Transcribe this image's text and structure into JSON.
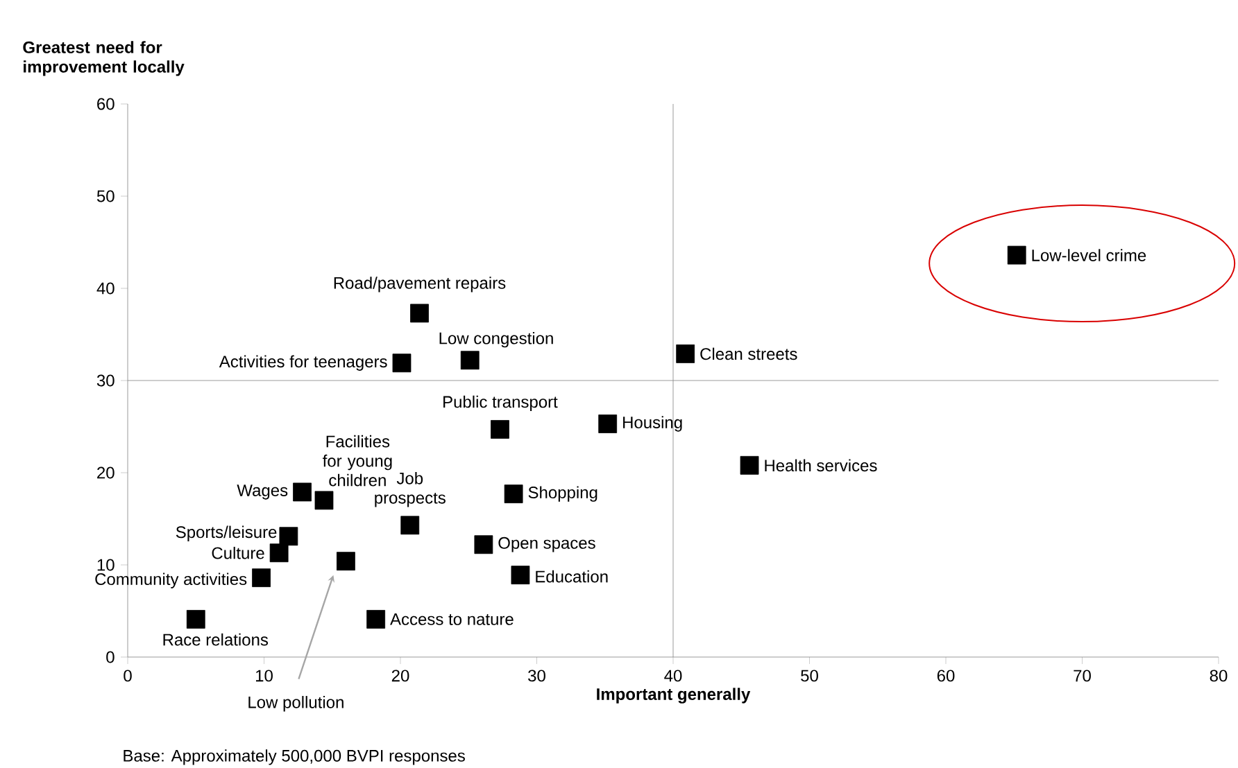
{
  "chart_data": {
    "type": "scatter",
    "xlabel": "Important generally",
    "ylabel": "Greatest need for improvement locally",
    "xlim": [
      0,
      80
    ],
    "ylim": [
      0,
      60
    ],
    "xticks": [
      0,
      10,
      20,
      30,
      40,
      50,
      60,
      70,
      80
    ],
    "yticks": [
      0,
      10,
      20,
      30,
      40,
      50,
      60
    ],
    "marker": "square",
    "ref_lines": [
      {
        "axis": "x",
        "value": 40,
        "color": "#808080"
      },
      {
        "axis": "y",
        "value": 30,
        "color": "#808080"
      }
    ],
    "annotations": [
      "Base: Approximately 500,000 BVPI responses"
    ],
    "series": [
      {
        "name": "Low-level crime",
        "color": "#000000",
        "x": [
          65.2
        ],
        "values": [
          43.6
        ]
      },
      {
        "name": "Clean streets",
        "color": "#000000",
        "x": [
          40.9
        ],
        "values": [
          32.9
        ]
      },
      {
        "name": "Road/pavement repairs",
        "color": "#000000",
        "x": [
          21.4
        ],
        "values": [
          37.3
        ]
      },
      {
        "name": "Low congestion",
        "color": "#000000",
        "x": [
          25.1
        ],
        "values": [
          32.2
        ]
      },
      {
        "name": "Activities for teenagers",
        "color": "#000000",
        "x": [
          20.1
        ],
        "values": [
          31.9
        ]
      },
      {
        "name": "Public transport",
        "color": "#000000",
        "x": [
          27.3
        ],
        "values": [
          24.7
        ]
      },
      {
        "name": "Housing",
        "color": "#000000",
        "x": [
          35.2
        ],
        "values": [
          25.3
        ]
      },
      {
        "name": "Health services",
        "color": "#000000",
        "x": [
          45.6
        ],
        "values": [
          20.8
        ]
      },
      {
        "name": "Wages",
        "color": "#000000",
        "x": [
          12.8
        ],
        "values": [
          17.9
        ]
      },
      {
        "name": "Facilities for young children",
        "color": "#000000",
        "x": [
          14.4
        ],
        "values": [
          17.0
        ]
      },
      {
        "name": "Shopping",
        "color": "#000000",
        "x": [
          28.3
        ],
        "values": [
          17.7
        ]
      },
      {
        "name": "Job prospects",
        "color": "#000000",
        "x": [
          20.7
        ],
        "values": [
          14.3
        ]
      },
      {
        "name": "Sports/leisure",
        "color": "#000000",
        "x": [
          11.8
        ],
        "values": [
          13.1
        ]
      },
      {
        "name": "Culture",
        "color": "#000000",
        "x": [
          11.1
        ],
        "values": [
          11.3
        ]
      },
      {
        "name": "Open spaces",
        "color": "#000000",
        "x": [
          26.1
        ],
        "values": [
          12.2
        ]
      },
      {
        "name": "Low pollution",
        "color": "#000000",
        "x": [
          16.0
        ],
        "values": [
          10.4
        ]
      },
      {
        "name": "Education",
        "color": "#000000",
        "x": [
          28.8
        ],
        "values": [
          8.9
        ]
      },
      {
        "name": "Community activities",
        "color": "#000000",
        "x": [
          9.8
        ],
        "values": [
          8.6
        ]
      },
      {
        "name": "Access to nature",
        "color": "#000000",
        "x": [
          18.2
        ],
        "values": [
          4.1
        ]
      },
      {
        "name": "Race relations",
        "color": "#000000",
        "x": [
          5.0
        ],
        "values": [
          4.1
        ]
      }
    ]
  }
}
